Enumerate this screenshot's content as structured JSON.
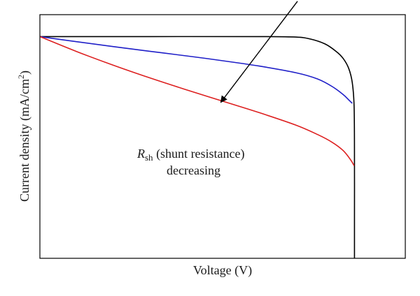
{
  "chart_data": {
    "type": "line",
    "xlabel": "Voltage (V)",
    "ylabel": {
      "main": "Current density (mA/cm",
      "sup": "2",
      "close": ")"
    },
    "xlim": [
      0,
      1
    ],
    "ylim": [
      0,
      1
    ],
    "axis_ticks": "none",
    "grid": false,
    "legend": "none",
    "series": [
      {
        "color": "#000000",
        "points": [
          [
            0,
            0.91
          ],
          [
            0.3,
            0.91
          ],
          [
            0.6,
            0.91
          ],
          [
            0.7,
            0.908
          ],
          [
            0.74,
            0.9
          ],
          [
            0.78,
            0.88
          ],
          [
            0.81,
            0.85
          ],
          [
            0.83,
            0.82
          ],
          [
            0.845,
            0.78
          ],
          [
            0.855,
            0.72
          ],
          [
            0.86,
            0.62
          ],
          [
            0.861,
            0.4
          ],
          [
            0.861,
            0.15
          ],
          [
            0.861,
            0
          ]
        ]
      },
      {
        "color": "#1f1fc8",
        "points": [
          [
            0,
            0.91
          ],
          [
            0.1,
            0.889
          ],
          [
            0.2,
            0.869
          ],
          [
            0.3,
            0.85
          ],
          [
            0.4,
            0.831
          ],
          [
            0.5,
            0.811
          ],
          [
            0.6,
            0.789
          ],
          [
            0.7,
            0.762
          ],
          [
            0.76,
            0.736
          ],
          [
            0.8,
            0.705
          ],
          [
            0.83,
            0.672
          ],
          [
            0.846,
            0.649
          ],
          [
            0.855,
            0.636
          ]
        ]
      },
      {
        "color": "#dd1f1f",
        "points": [
          [
            0,
            0.91
          ],
          [
            0.1,
            0.849
          ],
          [
            0.2,
            0.793
          ],
          [
            0.3,
            0.741
          ],
          [
            0.4,
            0.692
          ],
          [
            0.5,
            0.645
          ],
          [
            0.6,
            0.598
          ],
          [
            0.7,
            0.547
          ],
          [
            0.76,
            0.508
          ],
          [
            0.8,
            0.476
          ],
          [
            0.83,
            0.442
          ],
          [
            0.85,
            0.405
          ],
          [
            0.86,
            0.38
          ]
        ]
      }
    ],
    "annotation": {
      "symbol": "R",
      "subscript": "sh",
      "line1_rest": " (shunt resistance)",
      "line2": "decreasing",
      "arrow_from": [
        0.705,
        1.055
      ],
      "arrow_to": [
        0.495,
        0.64
      ]
    }
  }
}
